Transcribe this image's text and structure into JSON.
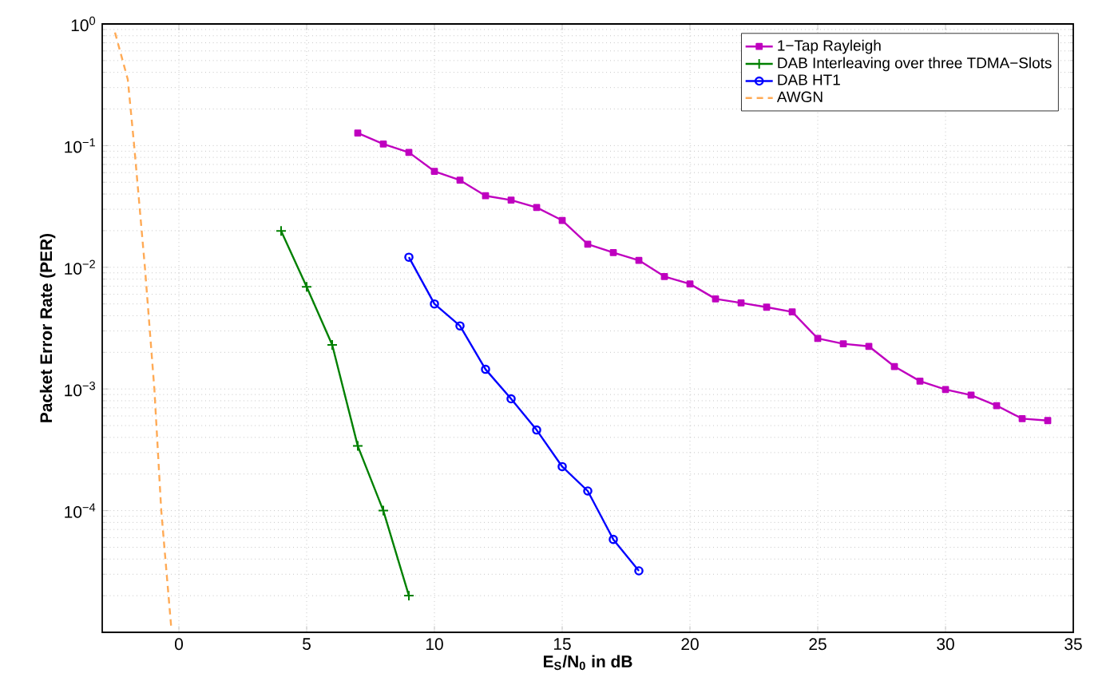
{
  "chart_data": {
    "type": "line",
    "xlabel": "E$_{S}$/N$_{0}$ in dB",
    "ylabel": "Packet Error Rate (PER)",
    "xlim": [
      -3,
      35
    ],
    "xticks": [
      0,
      5,
      10,
      15,
      20,
      25,
      30,
      35
    ],
    "ylim": [
      1e-05,
      1
    ],
    "log": "y",
    "yticks": [
      {
        "value": 1e-05,
        "label": null
      },
      {
        "value": 0.0001,
        "label": "10$^{−4}$"
      },
      {
        "value": 0.001,
        "label": "10$^{−3}$"
      },
      {
        "value": 0.01,
        "label": "10$^{−2}$"
      },
      {
        "value": 0.1,
        "label": "10$^{−1}$"
      },
      {
        "value": 1,
        "label": "10$^{0}$"
      }
    ],
    "grid": true,
    "legend": "top right",
    "series": [
      {
        "name": "1−Tap Rayleigh",
        "color": "#bf00bf",
        "marker": "square",
        "line_style": "solid",
        "x": [
          7,
          8,
          9,
          10,
          11,
          12,
          13,
          14,
          15,
          16,
          17,
          18,
          19,
          20,
          21,
          22,
          23,
          24,
          25,
          26,
          27,
          28,
          29,
          30,
          31,
          32,
          33,
          34
        ],
        "values": [
          0.127,
          0.103,
          0.088,
          0.0615,
          0.052,
          0.0387,
          0.0357,
          0.031,
          0.0243,
          0.0155,
          0.0132,
          0.0114,
          0.0084,
          0.0073,
          0.0055,
          0.0051,
          0.0047,
          0.0043,
          0.0026,
          0.00235,
          0.00224,
          0.00153,
          0.00116,
          0.00099,
          0.00089,
          0.00073,
          0.00057,
          0.00055
        ]
      },
      {
        "name": "DAB Interleaving over three TDMA−Slots",
        "color": "#008000",
        "marker": "cross",
        "line_style": "solid",
        "x": [
          4,
          5,
          6,
          7,
          8,
          9
        ],
        "values": [
          0.0199,
          0.0069,
          0.0023,
          0.00034,
          0.0001,
          2e-05
        ]
      },
      {
        "name": "DAB HT1",
        "color": "#0000ff",
        "marker": "circle",
        "line_style": "solid",
        "x": [
          9,
          10,
          11,
          12,
          13,
          14,
          15,
          16,
          17,
          18
        ],
        "values": [
          0.0121,
          0.005,
          0.0033,
          0.00145,
          0.00083,
          0.00046,
          0.00023,
          0.000145,
          5.8e-05,
          3.2e-05
        ]
      },
      {
        "name": "AWGN",
        "color": "#ffaa55",
        "marker": "none",
        "line_style": "dashed",
        "x": [
          -2.5,
          -2.0,
          -1.75,
          -1.33,
          -0.96,
          -0.69,
          -0.3
        ],
        "values": [
          0.85,
          0.35,
          0.1,
          0.01,
          0.001,
          0.0001,
          1.1e-05
        ]
      }
    ]
  }
}
